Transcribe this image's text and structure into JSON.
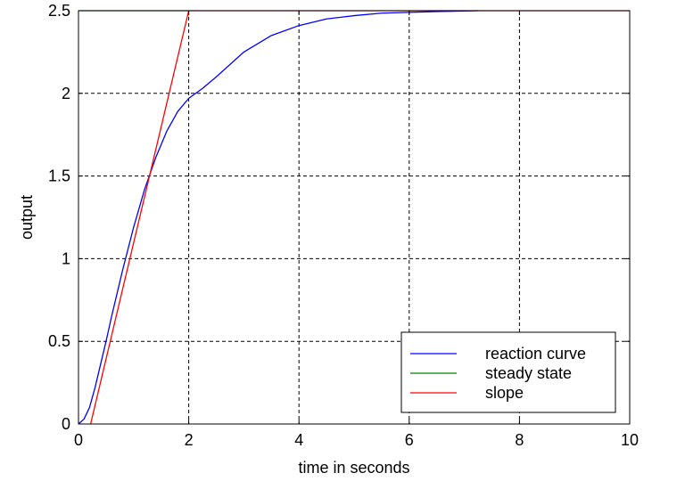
{
  "chart_data": {
    "type": "line",
    "title": "",
    "xlabel": "time in seconds",
    "ylabel": "output",
    "xlim": [
      0,
      10
    ],
    "ylim": [
      0,
      2.5
    ],
    "x_ticks": [
      "0",
      "2",
      "4",
      "6",
      "8",
      "10"
    ],
    "y_ticks": [
      "0",
      "0.5",
      "1",
      "1.5",
      "2",
      "2.5"
    ],
    "grid": true,
    "legend_position": "bottom-right",
    "series": [
      {
        "name": "reaction curve",
        "color": "#0000ff",
        "x": [
          0,
          0.1,
          0.2,
          0.3,
          0.4,
          0.5,
          0.6,
          0.8,
          1.0,
          1.2,
          1.4,
          1.6,
          1.8,
          2.0,
          2.25,
          2.5,
          3.0,
          3.5,
          4.0,
          4.5,
          5.0,
          5.5,
          6.0,
          6.5,
          7.0,
          7.25
        ],
        "y": [
          0.0,
          0.03,
          0.1,
          0.22,
          0.36,
          0.5,
          0.65,
          0.93,
          1.19,
          1.42,
          1.61,
          1.77,
          1.89,
          1.97,
          2.03,
          2.1,
          2.25,
          2.35,
          2.41,
          2.45,
          2.47,
          2.485,
          2.49,
          2.495,
          2.498,
          2.5
        ]
      },
      {
        "name": "steady state",
        "color": "#008000",
        "x": [
          0,
          2
        ],
        "y": [
          2.5,
          2.5
        ]
      },
      {
        "name": "slope",
        "color": "#ff0000",
        "x": [
          0.22,
          2.0,
          10
        ],
        "y": [
          0.0,
          2.5,
          2.5
        ]
      }
    ]
  }
}
